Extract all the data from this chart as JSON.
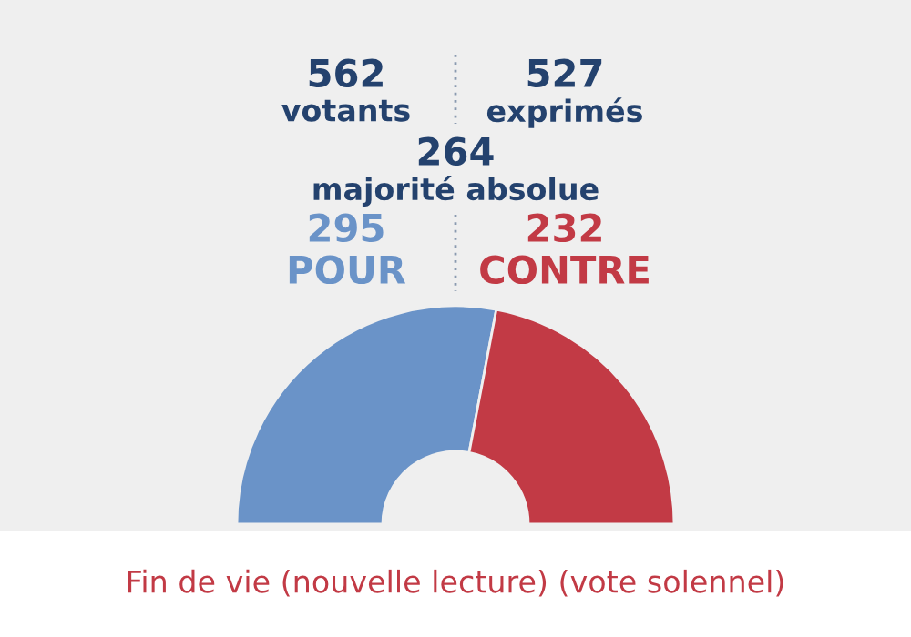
{
  "chart_data": {
    "type": "other",
    "title": "Fin de vie (nouvelle lecture) (vote solennel)",
    "categories": [
      "POUR",
      "CONTRE"
    ],
    "values": [
      295,
      232
    ],
    "colors": [
      "#6a93c8",
      "#c23a45"
    ],
    "data_labels": true,
    "annotations": [
      "562 votants",
      "527 exprimés",
      "264 majorité absolue"
    ]
  }
}
